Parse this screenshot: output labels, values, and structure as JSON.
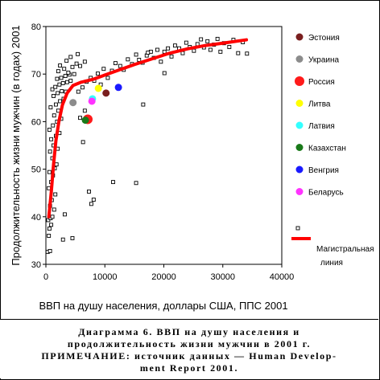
{
  "chart_data": {
    "type": "scatter",
    "xlabel": "ВВП на душу населения, доллары США, ППС 2001",
    "ylabel": "Продолжительность жизни мужчин (в годах) 2001",
    "xlim": [
      0,
      40000
    ],
    "ylim": [
      30,
      80
    ],
    "x_ticks": [
      "0",
      "10000",
      "20000",
      "30000",
      "40000"
    ],
    "y_ticks": [
      "30",
      "40",
      "50",
      "60",
      "70",
      "80"
    ],
    "grid": false,
    "legend_position": "right",
    "countries": [
      {
        "name": "Эстония",
        "x": 10200,
        "y": 66,
        "color": "#7a1f1f"
      },
      {
        "name": "Украина",
        "x": 4600,
        "y": 64,
        "color": "#8c8c8c"
      },
      {
        "name": "Россия",
        "x": 7100,
        "y": 60.5,
        "color": "#ff1a1a"
      },
      {
        "name": "Литва",
        "x": 8900,
        "y": 67,
        "color": "#ffff00"
      },
      {
        "name": "Латвия",
        "x": 7900,
        "y": 64.8,
        "color": "#33ffff"
      },
      {
        "name": "Казахстан",
        "x": 6700,
        "y": 60.3,
        "color": "#1a7a1a"
      },
      {
        "name": "Венгрия",
        "x": 12300,
        "y": 67.2,
        "color": "#1a1aff"
      },
      {
        "name": "Беларусь",
        "x": 7800,
        "y": 64.3,
        "color": "#ff33ff"
      }
    ],
    "other_label": "",
    "trend_label": "Магистральная линия",
    "trend_color": "#ff0000",
    "trend_line": [
      {
        "x": 500,
        "y": 40
      },
      {
        "x": 900,
        "y": 45
      },
      {
        "x": 1300,
        "y": 51
      },
      {
        "x": 1700,
        "y": 56
      },
      {
        "x": 2200,
        "y": 60
      },
      {
        "x": 2800,
        "y": 63.5
      },
      {
        "x": 3600,
        "y": 66
      },
      {
        "x": 4600,
        "y": 67.6
      },
      {
        "x": 6000,
        "y": 68.3
      },
      {
        "x": 8000,
        "y": 68.9
      },
      {
        "x": 10000,
        "y": 69.8
      },
      {
        "x": 12500,
        "y": 70.9
      },
      {
        "x": 15000,
        "y": 72
      },
      {
        "x": 18000,
        "y": 73.2
      },
      {
        "x": 21000,
        "y": 74.4
      },
      {
        "x": 24000,
        "y": 75.3
      },
      {
        "x": 27000,
        "y": 76
      },
      {
        "x": 30000,
        "y": 76.5
      },
      {
        "x": 34000,
        "y": 77.2
      }
    ],
    "points": [
      [
        300,
        32.6
      ],
      [
        700,
        32.8
      ],
      [
        500,
        36
      ],
      [
        600,
        37.5
      ],
      [
        900,
        38.3
      ],
      [
        400,
        39.3
      ],
      [
        800,
        39.7
      ],
      [
        1100,
        40
      ],
      [
        1400,
        41.5
      ],
      [
        700,
        42.3
      ],
      [
        1000,
        43.5
      ],
      [
        1600,
        44.7
      ],
      [
        500,
        46
      ],
      [
        900,
        47.3
      ],
      [
        1200,
        48.7
      ],
      [
        600,
        49.4
      ],
      [
        1500,
        50.2
      ],
      [
        1800,
        51
      ],
      [
        1100,
        52.3
      ],
      [
        700,
        53.7
      ],
      [
        2000,
        54.3
      ],
      [
        1300,
        55
      ],
      [
        900,
        56.3
      ],
      [
        1700,
        57
      ],
      [
        2300,
        57.6
      ],
      [
        600,
        58.3
      ],
      [
        1200,
        59.2
      ],
      [
        1900,
        60
      ],
      [
        2600,
        60.6
      ],
      [
        1400,
        61.3
      ],
      [
        2100,
        62.3
      ],
      [
        800,
        63
      ],
      [
        1700,
        63.6
      ],
      [
        2400,
        64.3
      ],
      [
        3000,
        64.8
      ],
      [
        1300,
        65.4
      ],
      [
        2000,
        66
      ],
      [
        2700,
        66.4
      ],
      [
        3400,
        66.3
      ],
      [
        1100,
        66.8
      ],
      [
        1600,
        67.3
      ],
      [
        2300,
        67.8
      ],
      [
        2900,
        68.1
      ],
      [
        3600,
        68.3
      ],
      [
        4200,
        68.6
      ],
      [
        1900,
        69
      ],
      [
        2600,
        69.2
      ],
      [
        3300,
        69.6
      ],
      [
        4000,
        69.9
      ],
      [
        4800,
        70
      ],
      [
        2100,
        70.6
      ],
      [
        3100,
        71.1
      ],
      [
        3800,
        70.3
      ],
      [
        4500,
        71.5
      ],
      [
        5200,
        72.2
      ],
      [
        5800,
        71.7
      ],
      [
        6600,
        72.6
      ],
      [
        2400,
        71.8
      ],
      [
        3500,
        72.8
      ],
      [
        4200,
        73.6
      ],
      [
        5400,
        74.2
      ],
      [
        5500,
        66.3
      ],
      [
        6200,
        67.2
      ],
      [
        6900,
        68.4
      ],
      [
        7600,
        69.2
      ],
      [
        8200,
        68.6
      ],
      [
        8800,
        70.1
      ],
      [
        9300,
        67.8
      ],
      [
        9800,
        71.1
      ],
      [
        10500,
        69.2
      ],
      [
        11200,
        70.7
      ],
      [
        11800,
        72.3
      ],
      [
        12600,
        71.7
      ],
      [
        13200,
        70.9
      ],
      [
        13900,
        73.1
      ],
      [
        14600,
        72.1
      ],
      [
        15300,
        74.1
      ],
      [
        15800,
        73
      ],
      [
        16400,
        72.4
      ],
      [
        17100,
        73.9
      ],
      [
        17800,
        74.7
      ],
      [
        18300,
        73.4
      ],
      [
        18900,
        75.1
      ],
      [
        19500,
        72.6
      ],
      [
        20100,
        74.7
      ],
      [
        20700,
        75.4
      ],
      [
        21300,
        73.7
      ],
      [
        21900,
        76
      ],
      [
        22600,
        75.4
      ],
      [
        23200,
        74.4
      ],
      [
        23800,
        76.6
      ],
      [
        24400,
        75.7
      ],
      [
        25100,
        74.9
      ],
      [
        25700,
        76.3
      ],
      [
        26300,
        77.3
      ],
      [
        26800,
        75.6
      ],
      [
        27400,
        76.9
      ],
      [
        27900,
        75.1
      ],
      [
        28500,
        76.2
      ],
      [
        29100,
        77.4
      ],
      [
        29600,
        74.7
      ],
      [
        30200,
        76.5
      ],
      [
        31100,
        75.7
      ],
      [
        31800,
        77.2
      ],
      [
        32600,
        74.4
      ],
      [
        33400,
        76.7
      ],
      [
        34100,
        74.3
      ],
      [
        4500,
        35.5
      ],
      [
        6300,
        55.7
      ],
      [
        7300,
        45.3
      ],
      [
        7700,
        42.7
      ],
      [
        8100,
        43.6
      ],
      [
        11400,
        47.3
      ],
      [
        15300,
        47.1
      ],
      [
        16500,
        63.6
      ],
      [
        20100,
        70.2
      ],
      [
        17300,
        74.5
      ],
      [
        5800,
        60.8
      ],
      [
        6600,
        62.3
      ],
      [
        3200,
        40.5
      ],
      [
        2900,
        35.2
      ]
    ]
  },
  "caption": {
    "line1": "Диаграмма 6. ВВП на душу населения и",
    "line2": "продолжительность жизни мужчин в 2001 г.",
    "line3": "ПРИМЕЧАНИЕ: источник данных — Human Develop-",
    "line4": "ment Report 2001."
  }
}
